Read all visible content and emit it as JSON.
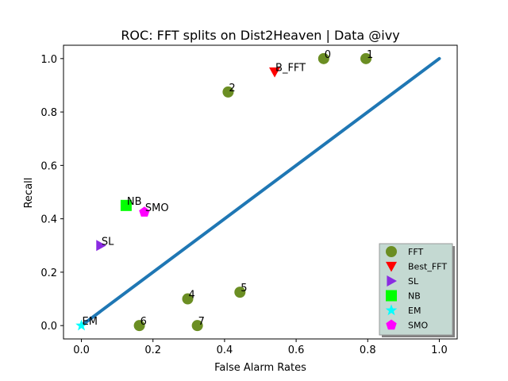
{
  "chart_data": {
    "type": "scatter",
    "title": "ROC: FFT splits on Dist2Heaven  |  Data @ivy",
    "xlabel": "False Alarm Rates",
    "ylabel": "Recall",
    "xlim": [
      -0.05,
      1.05
    ],
    "ylim": [
      -0.05,
      1.05
    ],
    "xticks": [
      "0.0",
      "0.2",
      "0.4",
      "0.6",
      "0.8",
      "1.0"
    ],
    "yticks": [
      "0.0",
      "0.2",
      "0.4",
      "0.6",
      "0.8",
      "1.0"
    ],
    "grid": false,
    "legend_position": "bottom-right",
    "diagonal": {
      "x": [
        0,
        1
      ],
      "y": [
        0,
        1
      ],
      "color": "#1f77b4"
    },
    "series": [
      {
        "name": "FFT",
        "marker": "circle",
        "color": "#6b8e23",
        "points": [
          {
            "x": 0.677,
            "y": 1.0,
            "label": "0"
          },
          {
            "x": 0.795,
            "y": 1.0,
            "label": "1"
          },
          {
            "x": 0.41,
            "y": 0.875,
            "label": "2"
          },
          {
            "x": 0.297,
            "y": 0.1,
            "label": "4"
          },
          {
            "x": 0.443,
            "y": 0.125,
            "label": "5"
          },
          {
            "x": 0.162,
            "y": 0.0,
            "label": "6"
          },
          {
            "x": 0.324,
            "y": 0.0,
            "label": "7"
          }
        ]
      },
      {
        "name": "Best_FFT",
        "marker": "triangle-down",
        "color": "#ff0000",
        "points": [
          {
            "x": 0.54,
            "y": 0.95,
            "label": "B_FFT"
          }
        ]
      },
      {
        "name": "SL",
        "marker": "triangle-right",
        "color": "#8a2be2",
        "points": [
          {
            "x": 0.054,
            "y": 0.3,
            "label": "SL"
          }
        ]
      },
      {
        "name": "NB",
        "marker": "square",
        "color": "#00ff00",
        "points": [
          {
            "x": 0.125,
            "y": 0.45,
            "label": "NB"
          }
        ]
      },
      {
        "name": "EM",
        "marker": "star",
        "color": "#00ffff",
        "points": [
          {
            "x": 0.0,
            "y": 0.0,
            "label": "EM"
          }
        ]
      },
      {
        "name": "SMO",
        "marker": "pentagon",
        "color": "#ff00ff",
        "points": [
          {
            "x": 0.176,
            "y": 0.425,
            "label": "SMO"
          }
        ]
      }
    ]
  }
}
